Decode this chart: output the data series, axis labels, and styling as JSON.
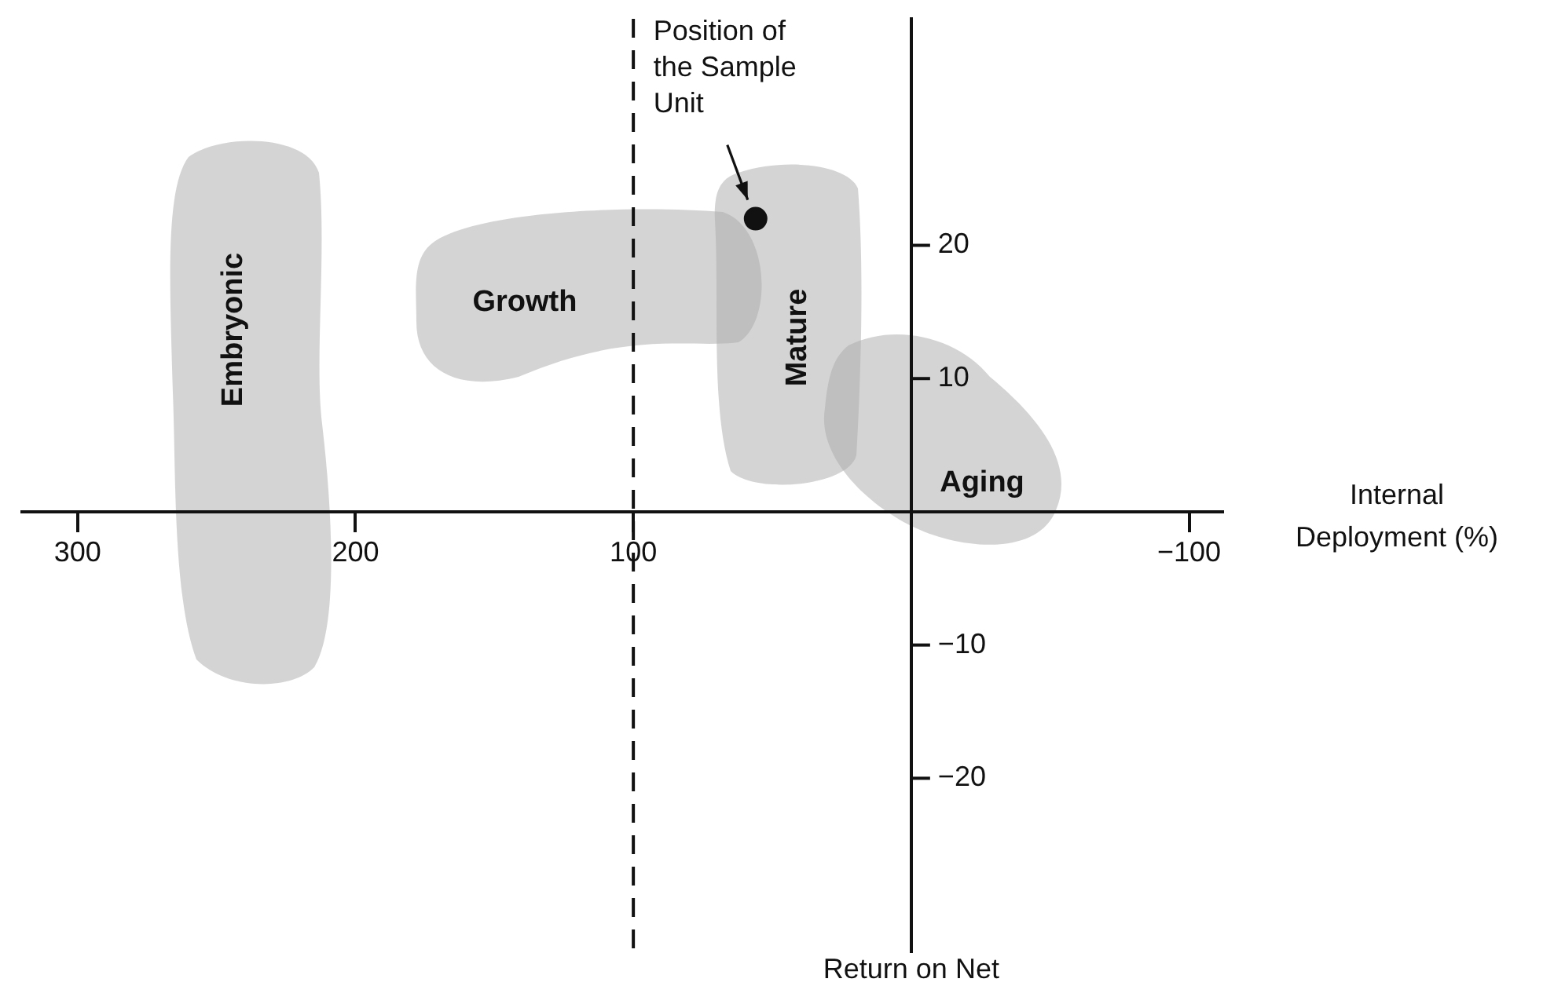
{
  "chart_data": {
    "type": "scatter",
    "xlabel": "Internal Deployment (%)",
    "x": [
      56
    ],
    "values": [
      22
    ],
    "color": "#111111",
    "marker": "circle",
    "xlim": [
      320,
      -112
    ],
    "xticks": [
      300,
      200,
      100,
      {
        "value": -100,
        "label": "−100"
      }
    ],
    "ylim": [
      -33,
      37
    ],
    "yticks": [
      20,
      10,
      {
        "value": -10,
        "label": "−10"
      },
      {
        "value": -20,
        "label": "−20"
      }
    ],
    "ref_lines": [
      {
        "axis": "x",
        "value": 100,
        "color": "#111111",
        "line_style": "dashed"
      }
    ],
    "annotations": [
      "Embryonic",
      "Growth",
      "Mature",
      "Aging",
      "Position of the Sample Unit",
      "Return on Net"
    ]
  }
}
